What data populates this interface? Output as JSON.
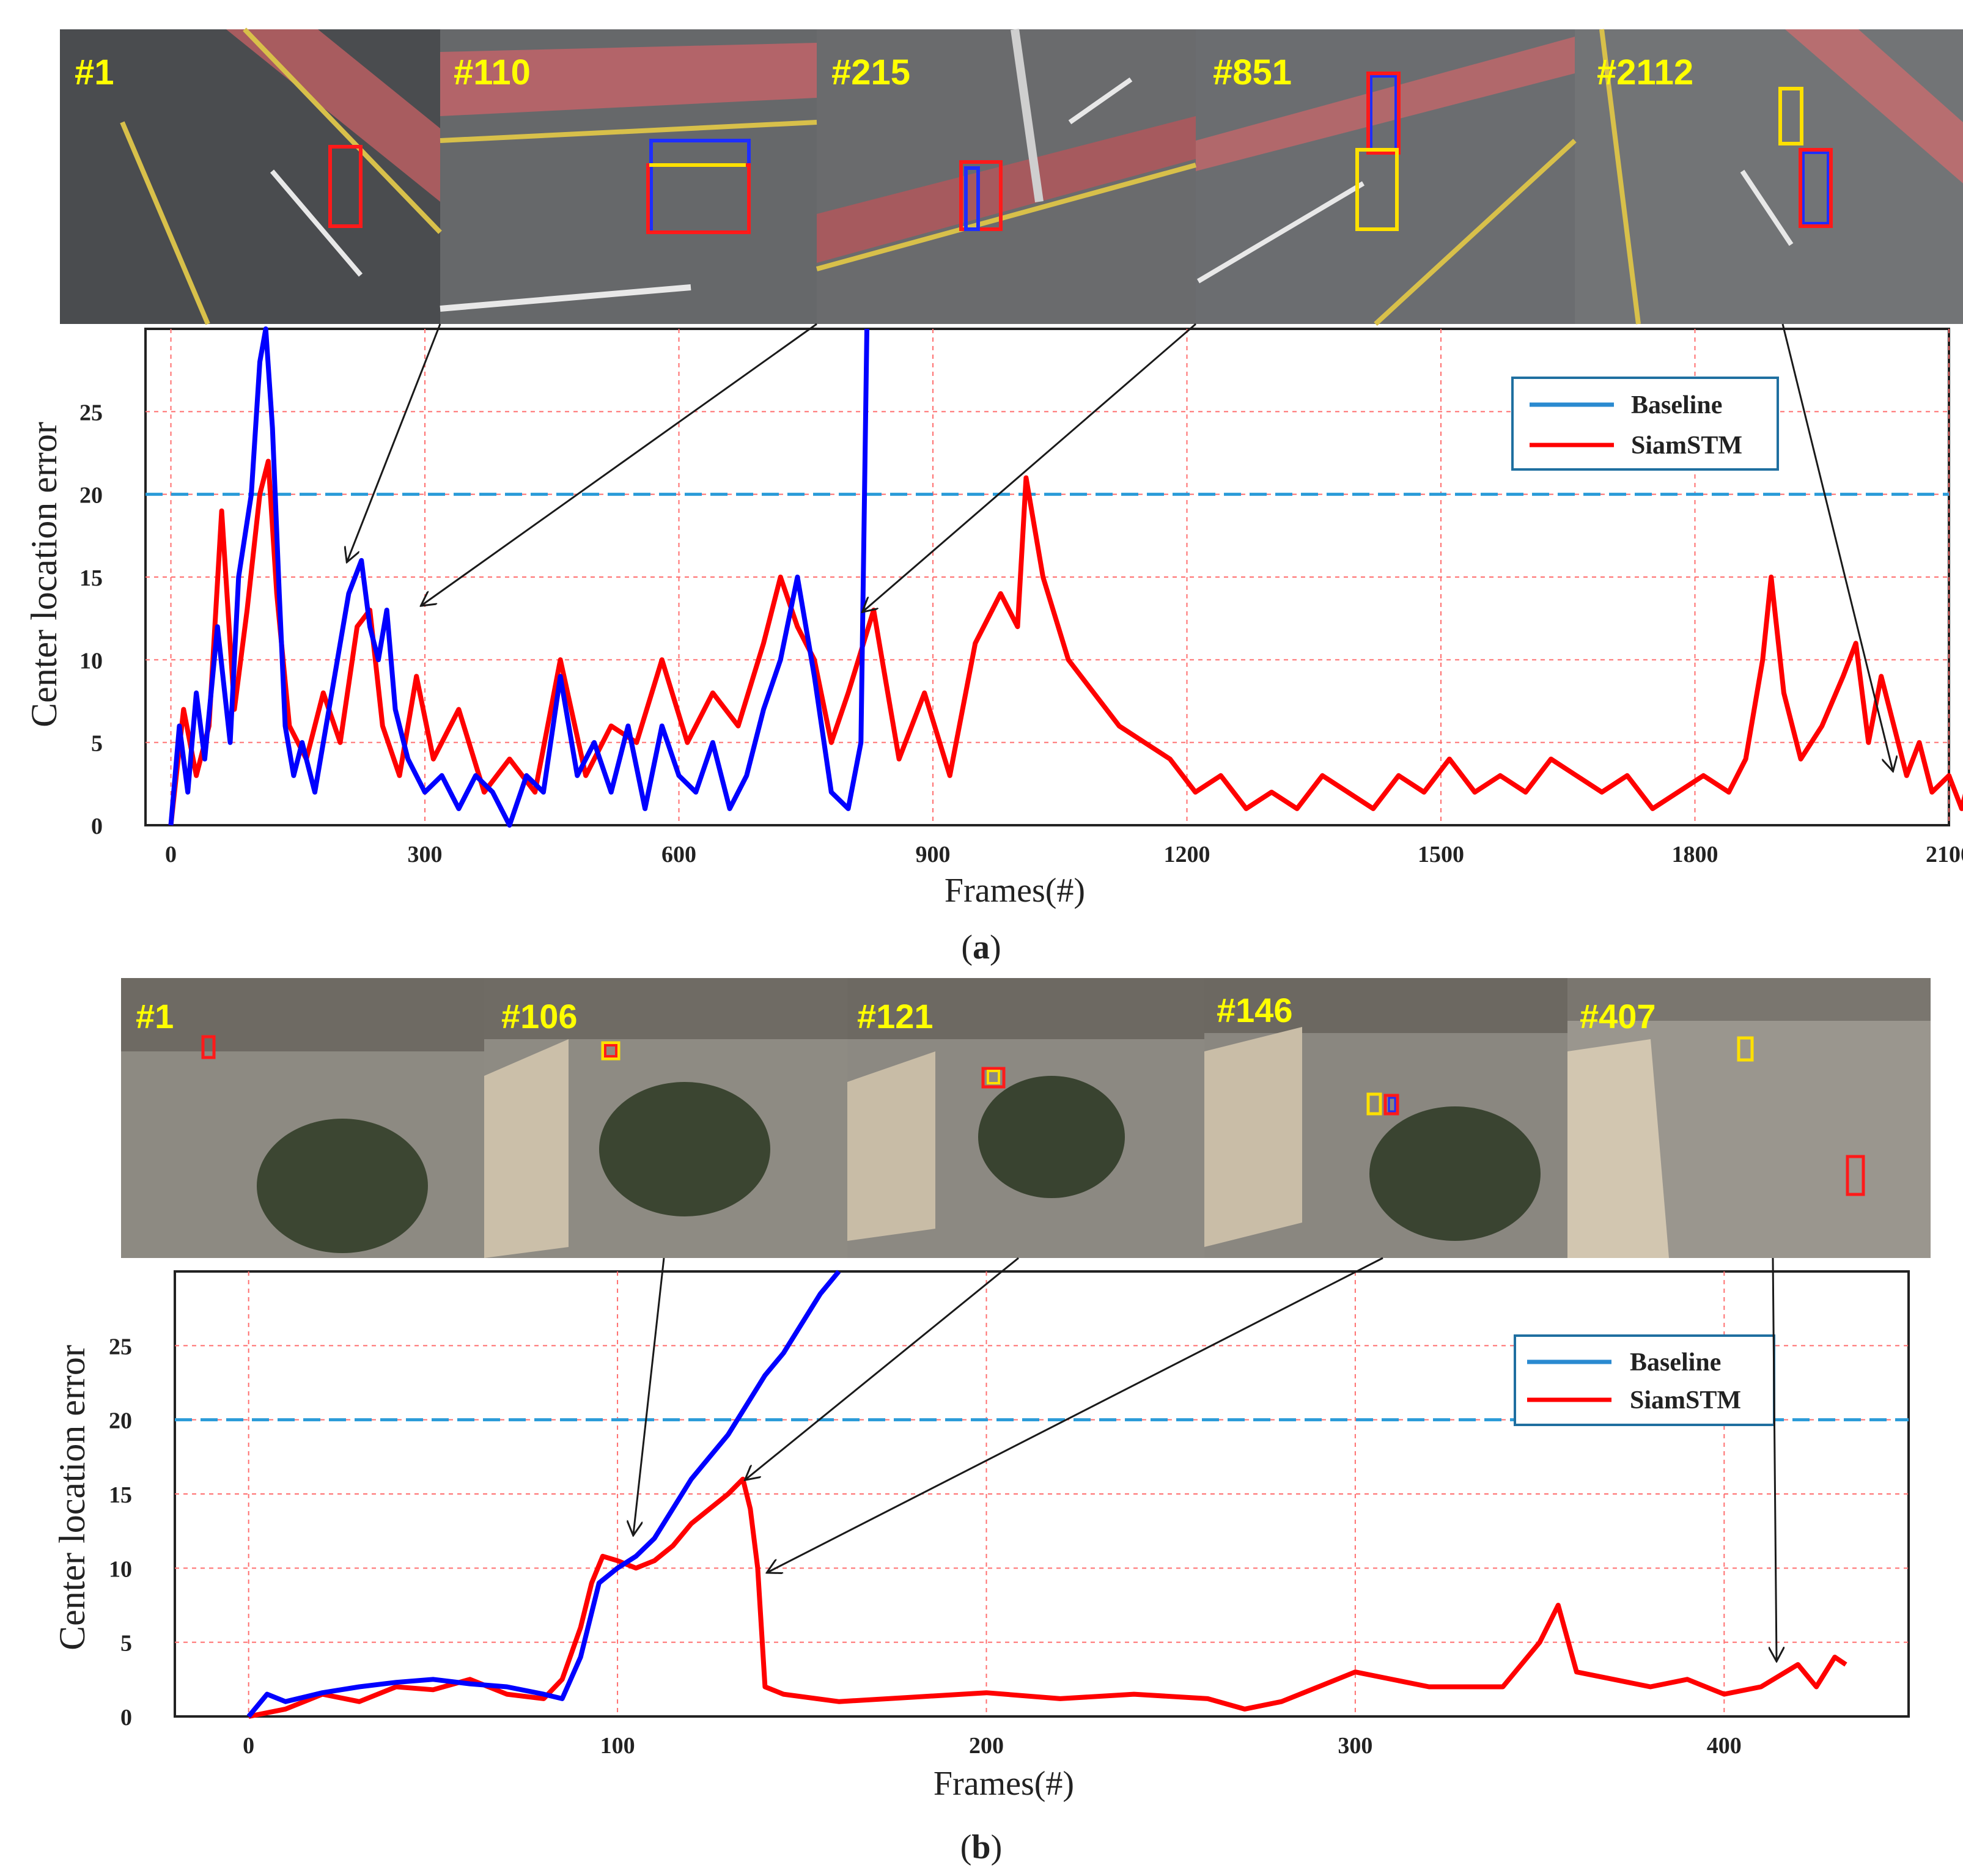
{
  "chart_data": [
    {
      "type": "line",
      "panel_label": "a",
      "xlabel": "Frames(#)",
      "ylabel": "Center location error",
      "xlim": [
        -30,
        2100
      ],
      "ylim": [
        0,
        30
      ],
      "xticks": [
        0,
        300,
        600,
        900,
        1200,
        1500,
        1800,
        2100
      ],
      "yticks": [
        0,
        5,
        10,
        15,
        20,
        25
      ],
      "threshold": 20,
      "grid": true,
      "legend_position": "top-right",
      "frames": [
        "#1",
        "#110",
        "#215",
        "#851",
        "#2112"
      ],
      "series": [
        {
          "name": "Baseline",
          "color": "#0000ff",
          "x": [
            0,
            10,
            20,
            30,
            40,
            55,
            70,
            80,
            95,
            105,
            112,
            120,
            128,
            135,
            145,
            155,
            170,
            190,
            210,
            225,
            235,
            245,
            255,
            265,
            280,
            300,
            320,
            340,
            360,
            380,
            400,
            420,
            440,
            460,
            480,
            500,
            520,
            540,
            560,
            580,
            600,
            620,
            640,
            660,
            680,
            700,
            720,
            740,
            760,
            780,
            800,
            815,
            822
          ],
          "values": [
            0,
            6,
            2,
            8,
            4,
            12,
            5,
            15,
            20,
            28,
            30,
            24,
            14,
            6,
            3,
            5,
            2,
            8,
            14,
            16,
            12,
            10,
            13,
            7,
            4,
            2,
            3,
            1,
            3,
            2,
            0,
            3,
            2,
            9,
            3,
            5,
            2,
            6,
            1,
            6,
            3,
            2,
            5,
            1,
            3,
            7,
            10,
            15,
            9,
            2,
            1,
            5,
            30
          ]
        },
        {
          "name": "SiamSTM",
          "color": "#ff0000",
          "x": [
            0,
            15,
            30,
            45,
            60,
            75,
            90,
            105,
            115,
            125,
            140,
            160,
            180,
            200,
            220,
            235,
            250,
            270,
            290,
            310,
            340,
            370,
            400,
            430,
            460,
            490,
            520,
            550,
            580,
            610,
            640,
            670,
            700,
            720,
            740,
            760,
            780,
            800,
            830,
            860,
            890,
            920,
            950,
            980,
            1000,
            1010,
            1030,
            1060,
            1090,
            1120,
            1150,
            1180,
            1210,
            1240,
            1270,
            1300,
            1330,
            1360,
            1390,
            1420,
            1450,
            1480,
            1510,
            1540,
            1570,
            1600,
            1630,
            1660,
            1690,
            1720,
            1750,
            1780,
            1810,
            1840,
            1860,
            1880,
            1890,
            1905,
            1925,
            1950,
            1975,
            1990,
            2005,
            2020,
            2035,
            2050,
            2065,
            2080,
            2100,
            2115,
            2125,
            2135
          ],
          "values": [
            0,
            7,
            3,
            6,
            19,
            7,
            13,
            20,
            22,
            14,
            6,
            4,
            8,
            5,
            12,
            13,
            6,
            3,
            9,
            4,
            7,
            2,
            4,
            2,
            10,
            3,
            6,
            5,
            10,
            5,
            8,
            6,
            11,
            15,
            12,
            10,
            5,
            8,
            13,
            4,
            8,
            3,
            11,
            14,
            12,
            21,
            15,
            10,
            8,
            6,
            5,
            4,
            2,
            3,
            1,
            2,
            1,
            3,
            2,
            1,
            3,
            2,
            4,
            2,
            3,
            2,
            4,
            3,
            2,
            3,
            1,
            2,
            3,
            2,
            4,
            10,
            15,
            8,
            4,
            6,
            9,
            11,
            5,
            9,
            6,
            3,
            5,
            2,
            3,
            1,
            3,
            4
          ]
        }
      ]
    },
    {
      "type": "line",
      "panel_label": "b",
      "xlabel": "Frames(#)",
      "ylabel": "Center location error",
      "xlim": [
        -20,
        450
      ],
      "ylim": [
        0,
        30
      ],
      "xticks": [
        0,
        100,
        200,
        300,
        400
      ],
      "yticks": [
        0,
        5,
        10,
        15,
        20,
        25
      ],
      "threshold": 20,
      "grid": true,
      "legend_position": "top-right",
      "frames": [
        "#1",
        "#106",
        "#121",
        "#146",
        "#407"
      ],
      "series": [
        {
          "name": "Baseline",
          "color": "#0000ff",
          "x": [
            0,
            5,
            10,
            20,
            30,
            40,
            50,
            60,
            70,
            80,
            85,
            90,
            95,
            100,
            105,
            110,
            115,
            120,
            125,
            130,
            135,
            140,
            145,
            150,
            155,
            160
          ],
          "values": [
            0,
            1.5,
            1.0,
            1.6,
            2.0,
            2.3,
            2.5,
            2.2,
            2.0,
            1.5,
            1.2,
            4.0,
            9.0,
            10.0,
            10.8,
            12.0,
            14.0,
            16.0,
            17.5,
            19.0,
            21.0,
            23.0,
            24.5,
            26.5,
            28.5,
            30
          ]
        },
        {
          "name": "SiamSTM",
          "color": "#ff0000",
          "x": [
            0,
            10,
            20,
            30,
            40,
            50,
            60,
            70,
            80,
            85,
            90,
            93,
            96,
            100,
            105,
            110,
            115,
            120,
            125,
            130,
            134,
            136,
            138,
            140,
            145,
            160,
            180,
            200,
            220,
            240,
            260,
            270,
            280,
            290,
            300,
            320,
            340,
            350,
            355,
            360,
            370,
            380,
            390,
            400,
            410,
            420,
            425,
            430,
            433
          ],
          "values": [
            0,
            0.5,
            1.5,
            1.0,
            2.0,
            1.8,
            2.5,
            1.5,
            1.2,
            2.5,
            6.0,
            9.0,
            10.8,
            10.5,
            10.0,
            10.5,
            11.5,
            13.0,
            14.0,
            15.0,
            16.0,
            14.0,
            10.0,
            2.0,
            1.5,
            1.0,
            1.3,
            1.6,
            1.2,
            1.5,
            1.2,
            0.5,
            1.0,
            2.0,
            3.0,
            2.0,
            2.0,
            5.0,
            7.5,
            3.0,
            2.5,
            2.0,
            2.5,
            1.5,
            2.0,
            3.5,
            2.0,
            4.0,
            3.5
          ]
        }
      ]
    }
  ]
}
